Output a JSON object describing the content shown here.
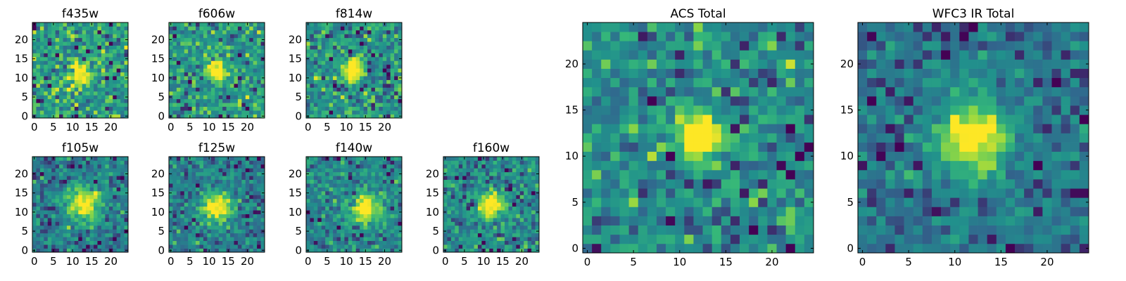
{
  "figure": {
    "background": "#ffffff",
    "colormap": [
      "#440154",
      "#31688e",
      "#21918c",
      "#35b779",
      "#90d743",
      "#fde725"
    ]
  },
  "chart_data": [
    {
      "type": "heatmap",
      "title": "f435w",
      "grid_size": 25,
      "cmap": "viridis",
      "xticks": [
        "0",
        "5",
        "10",
        "15",
        "20"
      ],
      "yticks": [
        "0",
        "5",
        "10",
        "15",
        "20"
      ],
      "xlim": [
        0,
        25
      ],
      "ylim": [
        0,
        25
      ],
      "source": {
        "x": 12,
        "y": 11,
        "peak": 0.75,
        "width": 2.0
      },
      "noise": 0.55,
      "seed": 101
    },
    {
      "type": "heatmap",
      "title": "f606w",
      "grid_size": 25,
      "cmap": "viridis",
      "xticks": [
        "0",
        "5",
        "10",
        "15",
        "20"
      ],
      "yticks": [
        "0",
        "5",
        "10",
        "15",
        "20"
      ],
      "xlim": [
        0,
        25
      ],
      "ylim": [
        0,
        25
      ],
      "source": {
        "x": 12,
        "y": 12,
        "peak": 0.95,
        "width": 1.8
      },
      "noise": 0.5,
      "seed": 202
    },
    {
      "type": "heatmap",
      "title": "f814w",
      "grid_size": 25,
      "cmap": "viridis",
      "xticks": [
        "0",
        "5",
        "10",
        "15",
        "20"
      ],
      "yticks": [
        "0",
        "5",
        "10",
        "15",
        "20"
      ],
      "xlim": [
        0,
        25
      ],
      "ylim": [
        0,
        25
      ],
      "source": {
        "x": 12,
        "y": 12,
        "peak": 0.85,
        "width": 1.9
      },
      "noise": 0.5,
      "seed": 303
    },
    {
      "type": "heatmap",
      "title": "f105w",
      "grid_size": 25,
      "cmap": "viridis",
      "xticks": [
        "0",
        "5",
        "10",
        "15",
        "20"
      ],
      "yticks": [
        "0",
        "5",
        "10",
        "15",
        "20"
      ],
      "xlim": [
        0,
        25
      ],
      "ylim": [
        0,
        25
      ],
      "source": {
        "x": 13,
        "y": 12,
        "peak": 0.7,
        "width": 3.2
      },
      "noise": 0.38,
      "seed": 404
    },
    {
      "type": "heatmap",
      "title": "f125w",
      "grid_size": 25,
      "cmap": "viridis",
      "xticks": [
        "0",
        "5",
        "10",
        "15",
        "20"
      ],
      "yticks": [
        "0",
        "5",
        "10",
        "15",
        "20"
      ],
      "xlim": [
        0,
        25
      ],
      "ylim": [
        0,
        25
      ],
      "source": {
        "x": 12,
        "y": 11,
        "peak": 0.7,
        "width": 3.0
      },
      "noise": 0.38,
      "seed": 505
    },
    {
      "type": "heatmap",
      "title": "f140w",
      "grid_size": 25,
      "cmap": "viridis",
      "xticks": [
        "0",
        "5",
        "10",
        "15",
        "20"
      ],
      "yticks": [
        "0",
        "5",
        "10",
        "15",
        "20"
      ],
      "xlim": [
        0,
        25
      ],
      "ylim": [
        0,
        25
      ],
      "source": {
        "x": 15,
        "y": 11,
        "peak": 0.8,
        "width": 2.4
      },
      "noise": 0.42,
      "seed": 606
    },
    {
      "type": "heatmap",
      "title": "f160w",
      "grid_size": 25,
      "cmap": "viridis",
      "xticks": [
        "0",
        "5",
        "10",
        "15",
        "20"
      ],
      "yticks": [
        "0",
        "5",
        "10",
        "15",
        "20"
      ],
      "xlim": [
        0,
        25
      ],
      "ylim": [
        0,
        25
      ],
      "source": {
        "x": 12,
        "y": 12,
        "peak": 0.75,
        "width": 2.2
      },
      "noise": 0.42,
      "seed": 707
    },
    {
      "type": "heatmap",
      "title": "ACS Total",
      "grid_size": 25,
      "cmap": "viridis",
      "xticks": [
        "0",
        "5",
        "10",
        "15",
        "20"
      ],
      "yticks": [
        "0",
        "5",
        "10",
        "15",
        "20"
      ],
      "xlim": [
        0,
        25
      ],
      "ylim": [
        0,
        25
      ],
      "source": {
        "x": 12,
        "y": 12,
        "peak": 1.0,
        "width": 1.7
      },
      "noise": 0.45,
      "seed": 808
    },
    {
      "type": "heatmap",
      "title": "WFC3 IR Total",
      "grid_size": 25,
      "cmap": "viridis",
      "xticks": [
        "0",
        "5",
        "10",
        "15",
        "20"
      ],
      "yticks": [
        "0",
        "5",
        "10",
        "15",
        "20"
      ],
      "xlim": [
        0,
        25
      ],
      "ylim": [
        0,
        25
      ],
      "source": {
        "x": 12,
        "y": 12,
        "peak": 1.0,
        "width": 2.6
      },
      "noise": 0.38,
      "seed": 909
    }
  ]
}
